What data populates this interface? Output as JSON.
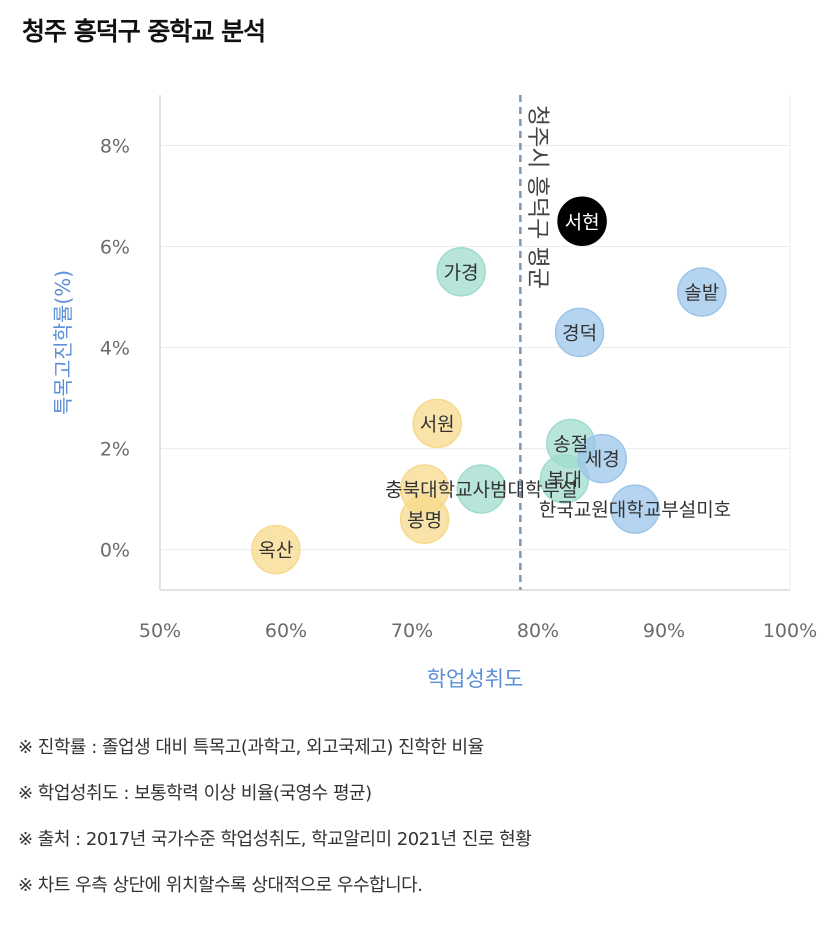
{
  "title": "청주 흥덕구 중학교 분석",
  "chart_data": {
    "type": "scatter",
    "title": "청주 흥덕구 중학교 분석",
    "xlabel": "학업성취도",
    "ylabel": "특목고진학률(%)",
    "xlim": [
      0.5,
      1.0
    ],
    "ylim": [
      -0.008,
      0.09
    ],
    "x_ticks": [
      "50%",
      "60%",
      "70%",
      "80%",
      "90%",
      "100%"
    ],
    "x_tick_values": [
      0.5,
      0.6,
      0.7,
      0.8,
      0.9,
      1.0
    ],
    "y_ticks": [
      "0%",
      "2%",
      "4%",
      "6%",
      "8%"
    ],
    "y_tick_values": [
      0,
      0.02,
      0.04,
      0.06,
      0.08
    ],
    "reference_line": {
      "x": 0.786,
      "label": "청주시 흥덕구 평균",
      "style": "dashed"
    },
    "colors": {
      "blue": "#9cc5ea",
      "teal": "#9fdccd",
      "yellow": "#f7d98b",
      "black": "#000000",
      "axis_label": "#5b8fd6"
    },
    "points": [
      {
        "name": "서현",
        "x": 0.835,
        "y": 0.065,
        "color": "black"
      },
      {
        "name": "솔밭",
        "x": 0.93,
        "y": 0.051,
        "color": "blue"
      },
      {
        "name": "가경",
        "x": 0.739,
        "y": 0.055,
        "color": "teal"
      },
      {
        "name": "경덕",
        "x": 0.833,
        "y": 0.043,
        "color": "blue"
      },
      {
        "name": "서원",
        "x": 0.72,
        "y": 0.025,
        "color": "yellow"
      },
      {
        "name": "송절",
        "x": 0.826,
        "y": 0.021,
        "color": "teal"
      },
      {
        "name": "복대",
        "x": 0.821,
        "y": 0.014,
        "color": "teal"
      },
      {
        "name": "세경",
        "x": 0.851,
        "y": 0.018,
        "color": "blue"
      },
      {
        "name": "충북대학교사범대학부설",
        "x": 0.755,
        "y": 0.012,
        "color": "teal"
      },
      {
        "name": "한국교원대학교부설미호",
        "x": 0.877,
        "y": 0.008,
        "color": "blue"
      },
      {
        "name": "봉명",
        "x": 0.71,
        "y": 0.006,
        "color": "yellow"
      },
      {
        "name": "",
        "x": 0.71,
        "y": 0.012,
        "color": "yellow"
      },
      {
        "name": "옥산",
        "x": 0.592,
        "y": 0.0,
        "color": "yellow"
      }
    ]
  },
  "notes": [
    "※ 진학률 : 졸업생 대비 특목고(과학고, 외고국제고) 진학한 비율",
    "※ 학업성취도 : 보통학력 이상 비율(국영수 평균)",
    "※ 출처 : 2017년 국가수준 학업성취도, 학교알리미 2021년 진로 현황",
    "※ 차트 우측 상단에 위치할수록 상대적으로 우수합니다."
  ]
}
